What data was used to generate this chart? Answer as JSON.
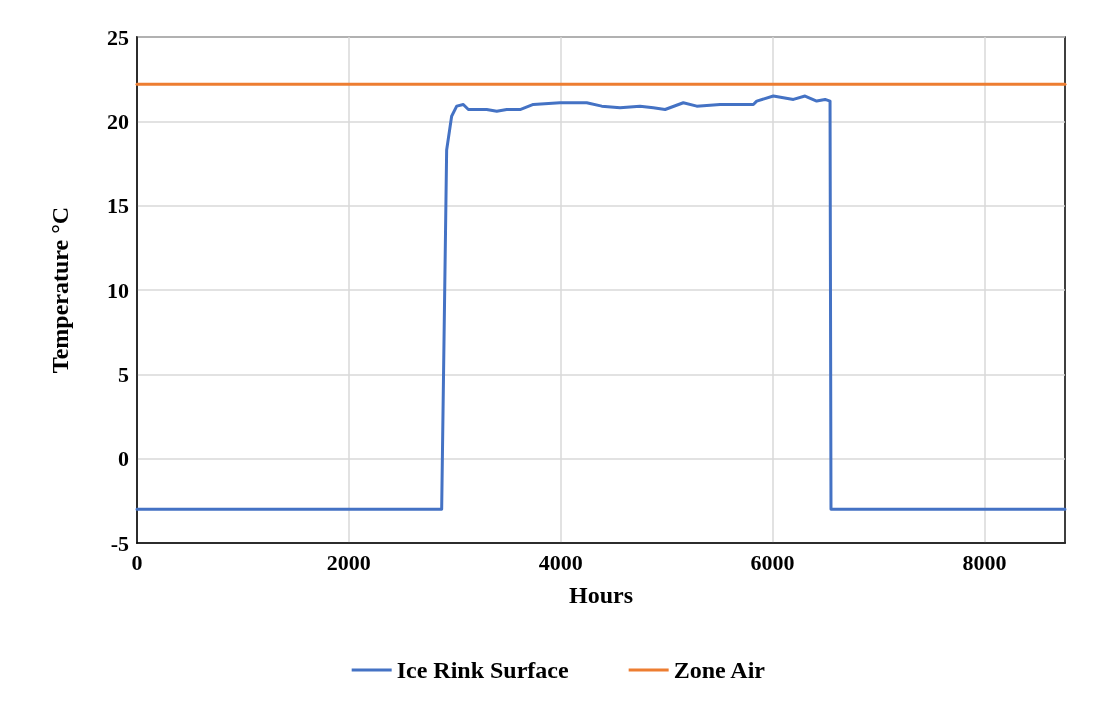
{
  "chart_data": {
    "type": "line",
    "xlabel": "Hours",
    "ylabel": "Temperature °C",
    "xlim": [
      0,
      8760
    ],
    "xticks": [
      0,
      2000,
      4000,
      6000,
      8000
    ],
    "ylim": [
      -5,
      25
    ],
    "yticks": [
      -5,
      0,
      5,
      10,
      15,
      20,
      25
    ],
    "grid": true,
    "legend": "bottom",
    "marker": "none",
    "line_style": "solid",
    "series": [
      {
        "name": "Ice Rink Surface",
        "color": "#4472c4",
        "x": [
          0,
          2000,
          2876,
          2923,
          2970,
          3018,
          3080,
          3128,
          3301,
          3396,
          3490,
          3616,
          3741,
          3993,
          4245,
          4387,
          4560,
          4748,
          4874,
          4985,
          5157,
          5284,
          5504,
          5818,
          5850,
          6007,
          6196,
          6306,
          6416,
          6495,
          6542,
          6551,
          8000,
          8760
        ],
        "values": [
          -3,
          -3,
          -3,
          18.3,
          20.3,
          20.9,
          21,
          20.7,
          20.7,
          20.6,
          20.7,
          20.7,
          21,
          21.1,
          21.1,
          20.9,
          20.8,
          20.9,
          20.8,
          20.7,
          21.1,
          20.9,
          21,
          21,
          21.2,
          21.5,
          21.3,
          21.5,
          21.2,
          21.3,
          21.2,
          -3,
          -3,
          -3
        ]
      },
      {
        "name": "Zone Air",
        "color": "#ed7d31",
        "x": [
          0,
          8760
        ],
        "values": [
          22.2,
          22.2
        ]
      }
    ]
  }
}
